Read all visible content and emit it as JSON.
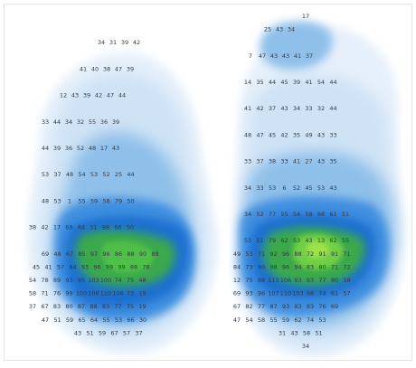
{
  "chart_data": {
    "type": "heatmap",
    "title": "",
    "colors": {
      "background": "#ffffff",
      "low": "#cfe3f5",
      "mid_low": "#8fc0ea",
      "mid": "#3f8fe0",
      "mid_high": "#1f6fd0",
      "high": "#3aa84b",
      "peak": "#9ee24a"
    },
    "rows": [
      {
        "label_row": 0,
        "values": [
          "17"
        ]
      },
      {
        "label_row": 1,
        "values": [
          "25",
          "43",
          "34"
        ]
      },
      {
        "label_row": 2,
        "values": [
          "34",
          "31",
          "39",
          "42"
        ]
      },
      {
        "label_row": 3,
        "values": [
          "7",
          "47",
          "43",
          "43",
          "41",
          "37"
        ]
      },
      {
        "label_row": 4,
        "values": [
          "41",
          "40",
          "38",
          "47",
          "39"
        ]
      },
      {
        "label_row": 5,
        "values": [
          "14",
          "35",
          "44",
          "45",
          "39",
          "41",
          "54",
          "44"
        ]
      },
      {
        "label_row": 6,
        "values": [
          "12",
          "43",
          "39",
          "42",
          "47",
          "44"
        ]
      },
      {
        "label_row": 7,
        "values": [
          "41",
          "42",
          "37",
          "43",
          "34",
          "33",
          "32",
          "44"
        ]
      },
      {
        "label_row": 8,
        "values": [
          "33",
          "44",
          "34",
          "32",
          "55",
          "36",
          "39"
        ]
      },
      {
        "label_row": 9,
        "values": [
          "48",
          "47",
          "45",
          "42",
          "35",
          "49",
          "43",
          "33"
        ]
      },
      {
        "label_row": 10,
        "values": [
          "44",
          "39",
          "36",
          "52",
          "48",
          "17",
          "43"
        ]
      },
      {
        "label_row": 11,
        "values": [
          "33",
          "37",
          "38",
          "33",
          "41",
          "27",
          "43",
          "35"
        ]
      },
      {
        "label_row": 12,
        "values": [
          "53",
          "37",
          "48",
          "54",
          "53",
          "52",
          "25",
          "44"
        ]
      },
      {
        "label_row": 13,
        "values": [
          "34",
          "33",
          "53",
          "6",
          "52",
          "45",
          "53",
          "43"
        ]
      },
      {
        "label_row": 14,
        "values": [
          "48",
          "53",
          "1",
          "55",
          "59",
          "58",
          "79",
          "50"
        ]
      },
      {
        "label_row": 15,
        "values": [
          "34",
          "52",
          "77",
          "55",
          "54",
          "58",
          "68",
          "61",
          "51"
        ]
      },
      {
        "label_row": 16,
        "values": [
          "38",
          "42",
          "17",
          "69",
          "64",
          "51",
          "88",
          "66",
          "50"
        ]
      },
      {
        "label_row": 17,
        "values": [
          "53",
          "51",
          "79",
          "62",
          "53",
          "43",
          "13",
          "62",
          "55"
        ]
      },
      {
        "label_row": 18,
        "values": [
          "69",
          "48",
          "67",
          "85",
          "97",
          "96",
          "86",
          "88",
          "90",
          "88",
          "49",
          "53",
          "71",
          "92",
          "96",
          "88",
          "72",
          "91",
          "91",
          "71"
        ]
      },
      {
        "label_row": 19,
        "values": [
          "45",
          "41",
          "57",
          "84",
          "93",
          "96",
          "99",
          "99",
          "88",
          "78",
          "84",
          "73",
          "90",
          "98",
          "96",
          "94",
          "83",
          "80",
          "71",
          "72"
        ]
      },
      {
        "label_row": 20,
        "values": [
          "54",
          "78",
          "89",
          "93",
          "95",
          "103",
          "100",
          "74",
          "75",
          "48",
          "12",
          "75",
          "88",
          "113",
          "106",
          "93",
          "93",
          "77",
          "80",
          "58"
        ]
      },
      {
        "label_row": 21,
        "values": [
          "58",
          "71",
          "76",
          "99",
          "100",
          "106",
          "110",
          "106",
          "73",
          "19",
          "69",
          "93",
          "96",
          "107",
          "110",
          "103",
          "98",
          "74",
          "61",
          "57"
        ]
      },
      {
        "label_row": 22,
        "values": [
          "37",
          "67",
          "83",
          "80",
          "87",
          "88",
          "83",
          "77",
          "75",
          "19",
          "67",
          "82",
          "77",
          "87",
          "93",
          "83",
          "83",
          "76",
          "69"
        ]
      },
      {
        "label_row": 23,
        "values": [
          "47",
          "51",
          "59",
          "65",
          "64",
          "55",
          "53",
          "66",
          "30",
          "47",
          "54",
          "58",
          "55",
          "59",
          "62",
          "74",
          "53"
        ]
      },
      {
        "label_row": 24,
        "values": [
          "43",
          "51",
          "59",
          "67",
          "57",
          "37",
          "31",
          "43",
          "58",
          "51"
        ]
      },
      {
        "label_row": 25,
        "values": [
          "34"
        ]
      }
    ]
  }
}
